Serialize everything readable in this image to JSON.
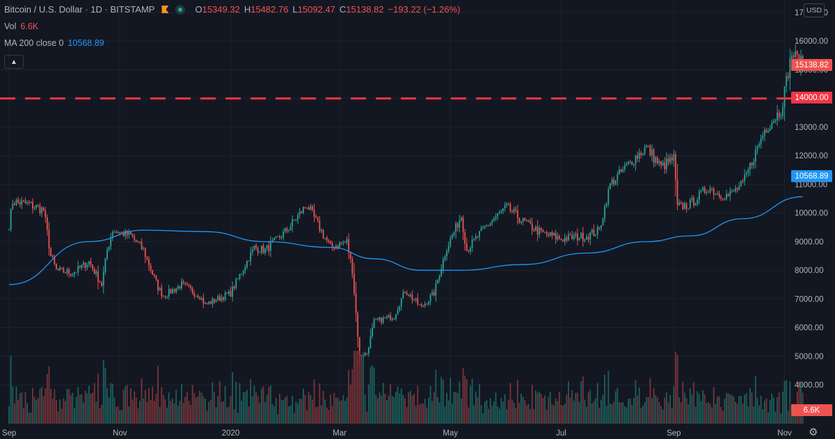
{
  "header": {
    "title": "Bitcoin / U.S. Dollar · 1D · BITSTAMP",
    "ohlc": {
      "open_label": "O",
      "open": "15349.32",
      "high_label": "H",
      "high": "15482.76",
      "low_label": "L",
      "low": "15092.47",
      "close_label": "C",
      "close": "15138.82",
      "change": "−193.22 (−1.26%)"
    },
    "vol_label": "Vol",
    "vol_value": "6.6K",
    "ma_label": "MA 200 close 0",
    "ma_value": "10568.89",
    "collapse_icon": "chevron-up-icon"
  },
  "currency": "USD",
  "colors": {
    "background": "#131722",
    "up": "#26a69a",
    "down": "#ef5350",
    "ma": "#2196f3",
    "level_line": "#f23645",
    "grid": "#1e222d"
  },
  "badges": {
    "price": "15138.82",
    "level": "14000.00",
    "ma": "10568.89",
    "volume": "6.6K"
  },
  "chart_data": {
    "type": "candlestick",
    "y_ticks": [
      "4000.00",
      "5000.00",
      "6000.00",
      "7000.00",
      "8000.00",
      "9000.00",
      "10000.00",
      "11000.00",
      "12000.00",
      "13000.00",
      "14000.00",
      "15000.00",
      "16000.00",
      "17000.00"
    ],
    "ylim": [
      3400,
      17200
    ],
    "x_labels": [
      "Sep",
      "Nov",
      "2020",
      "Mar",
      "May",
      "Jul",
      "Sep",
      "Nov"
    ],
    "horizontal_line": 14000,
    "ma_period": 200,
    "ohlc_anchor_close": [
      [
        "2019-09-01",
        9600
      ],
      [
        "2019-09-03",
        10400
      ],
      [
        "2019-09-12",
        10300
      ],
      [
        "2019-09-20",
        10100
      ],
      [
        "2019-09-24",
        8500
      ],
      [
        "2019-09-27",
        8000
      ],
      [
        "2019-10-06",
        7900
      ],
      [
        "2019-10-15",
        8300
      ],
      [
        "2019-10-22",
        7500
      ],
      [
        "2019-10-25",
        8700
      ],
      [
        "2019-10-28",
        9400
      ],
      [
        "2019-11-07",
        9200
      ],
      [
        "2019-11-14",
        8700
      ],
      [
        "2019-11-22",
        7400
      ],
      [
        "2019-11-25",
        7100
      ],
      [
        "2019-12-05",
        7500
      ],
      [
        "2019-12-15",
        7100
      ],
      [
        "2019-12-18",
        6800
      ],
      [
        "2020-01-01",
        7200
      ],
      [
        "2020-01-14",
        8800
      ],
      [
        "2020-01-20",
        8700
      ],
      [
        "2020-02-01",
        9400
      ],
      [
        "2020-02-12",
        10300
      ],
      [
        "2020-02-17",
        9700
      ],
      [
        "2020-02-25",
        8800
      ],
      [
        "2020-03-05",
        9000
      ],
      [
        "2020-03-08",
        8000
      ],
      [
        "2020-03-12",
        5000
      ],
      [
        "2020-03-16",
        5100
      ],
      [
        "2020-03-20",
        6200
      ],
      [
        "2020-03-31",
        6400
      ],
      [
        "2020-04-06",
        7300
      ],
      [
        "2020-04-15",
        6700
      ],
      [
        "2020-04-22",
        7200
      ],
      [
        "2020-04-29",
        8800
      ],
      [
        "2020-05-07",
        9900
      ],
      [
        "2020-05-10",
        8700
      ],
      [
        "2020-05-20",
        9500
      ],
      [
        "2020-06-01",
        10200
      ],
      [
        "2020-06-10",
        9700
      ],
      [
        "2020-06-20",
        9300
      ],
      [
        "2020-07-01",
        9100
      ],
      [
        "2020-07-15",
        9200
      ],
      [
        "2020-07-22",
        9400
      ],
      [
        "2020-07-28",
        11000
      ],
      [
        "2020-08-10",
        11900
      ],
      [
        "2020-08-17",
        12300
      ],
      [
        "2020-08-25",
        11600
      ],
      [
        "2020-09-01",
        11900
      ],
      [
        "2020-09-03",
        10200
      ],
      [
        "2020-09-10",
        10300
      ],
      [
        "2020-09-20",
        10900
      ],
      [
        "2020-09-25",
        10700
      ],
      [
        "2020-10-01",
        10600
      ],
      [
        "2020-10-09",
        11000
      ],
      [
        "2020-10-21",
        12900
      ],
      [
        "2020-10-30",
        13600
      ],
      [
        "2020-11-05",
        15600
      ],
      [
        "2020-11-06",
        15500
      ],
      [
        "2020-11-09",
        15300
      ],
      [
        "2020-11-11",
        15138
      ]
    ],
    "ma_anchor": [
      [
        "2019-09-01",
        7500
      ],
      [
        "2019-10-15",
        9000
      ],
      [
        "2019-11-14",
        9400
      ],
      [
        "2019-12-18",
        9350
      ],
      [
        "2020-01-20",
        9000
      ],
      [
        "2020-02-25",
        8800
      ],
      [
        "2020-03-20",
        8400
      ],
      [
        "2020-04-15",
        8000
      ],
      [
        "2020-05-07",
        8000
      ],
      [
        "2020-06-10",
        8200
      ],
      [
        "2020-07-15",
        8600
      ],
      [
        "2020-08-17",
        9000
      ],
      [
        "2020-09-10",
        9200
      ],
      [
        "2020-10-09",
        9800
      ],
      [
        "2020-11-11",
        10568
      ]
    ]
  }
}
